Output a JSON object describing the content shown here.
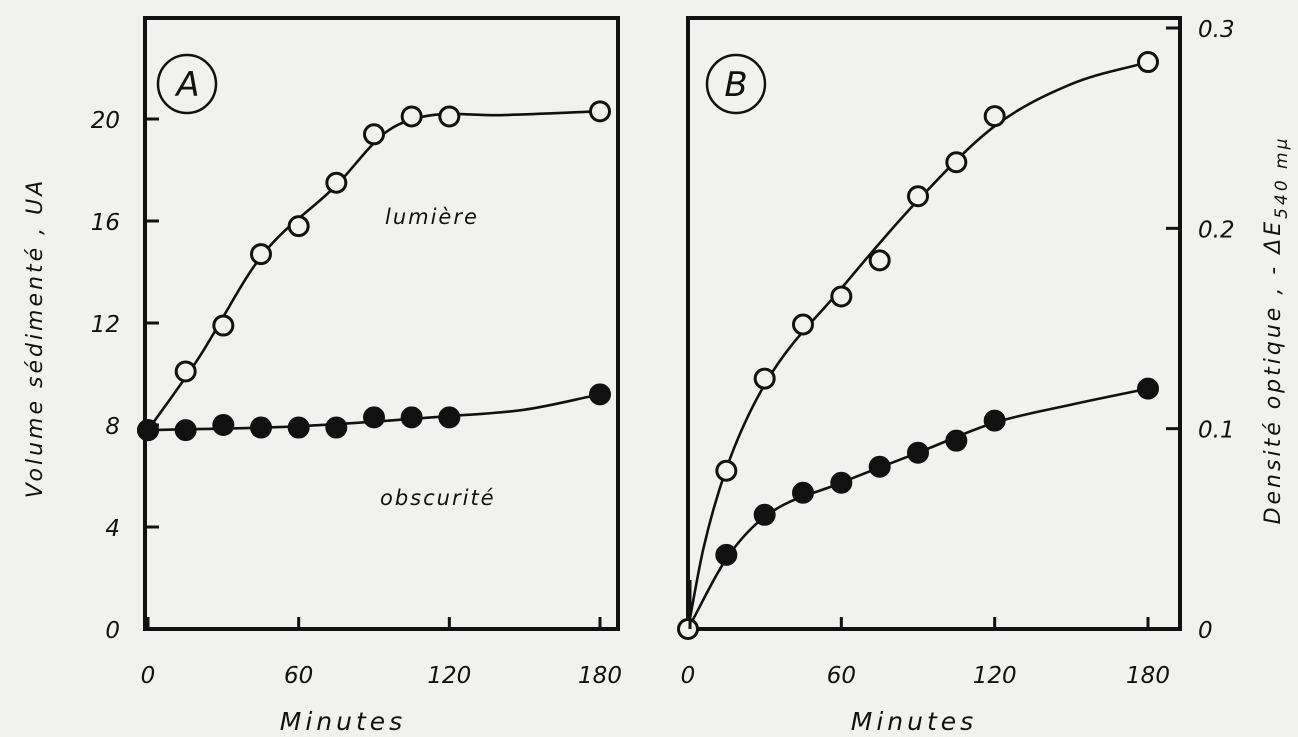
{
  "chart_data": [
    {
      "type": "scatter",
      "panel": "A",
      "xlabel": "Minutes",
      "ylabel": "Volume sédimenté , UA",
      "xlim": [
        0,
        180
      ],
      "ylim": [
        0,
        20
      ],
      "x_ticks": [
        "0",
        "60",
        "120",
        "180"
      ],
      "y_ticks": [
        "0",
        "4",
        "8",
        "12",
        "16",
        "20"
      ],
      "grid": false,
      "annotations": [
        "lumière",
        "obscurité"
      ],
      "series": [
        {
          "name": "lumière",
          "marker": "open-circle",
          "points": [
            [
              0,
              7.8
            ],
            [
              15,
              10.1
            ],
            [
              30,
              11.9
            ],
            [
              45,
              14.7
            ],
            [
              60,
              15.8
            ],
            [
              75,
              17.5
            ],
            [
              90,
              19.4
            ],
            [
              105,
              20.1
            ],
            [
              120,
              20.1
            ],
            [
              180,
              20.3
            ]
          ]
        },
        {
          "name": "obscurité",
          "marker": "filled-circle",
          "points": [
            [
              0,
              7.8
            ],
            [
              15,
              7.8
            ],
            [
              30,
              8.0
            ],
            [
              45,
              7.9
            ],
            [
              60,
              7.9
            ],
            [
              75,
              7.9
            ],
            [
              90,
              8.3
            ],
            [
              105,
              8.3
            ],
            [
              120,
              8.3
            ],
            [
              180,
              9.2
            ]
          ]
        }
      ]
    },
    {
      "type": "scatter",
      "panel": "B",
      "xlabel": "Minutes",
      "ylabel": "Densité optique , - ΔE",
      "ylabel_sub": "540 mμ",
      "xlim": [
        0,
        180
      ],
      "ylim": [
        0,
        0.3
      ],
      "x_ticks": [
        "0",
        "60",
        "120",
        "180"
      ],
      "y_ticks": [
        "0",
        "0.1",
        "0.2",
        "0.3"
      ],
      "grid": false,
      "series": [
        {
          "name": "open",
          "marker": "open-circle",
          "points": [
            [
              0,
              0.0
            ],
            [
              15,
              0.079
            ],
            [
              30,
              0.125
            ],
            [
              45,
              0.152
            ],
            [
              60,
              0.166
            ],
            [
              75,
              0.184
            ],
            [
              90,
              0.216
            ],
            [
              105,
              0.233
            ],
            [
              120,
              0.256
            ],
            [
              180,
              0.283
            ]
          ]
        },
        {
          "name": "filled",
          "marker": "filled-circle",
          "points": [
            [
              15,
              0.037
            ],
            [
              30,
              0.057
            ],
            [
              45,
              0.068
            ],
            [
              60,
              0.073
            ],
            [
              75,
              0.081
            ],
            [
              90,
              0.088
            ],
            [
              105,
              0.094
            ],
            [
              120,
              0.104
            ],
            [
              180,
              0.12
            ]
          ]
        }
      ]
    }
  ],
  "colors": {
    "ink": "#111111",
    "paper": "#f1f1ef"
  }
}
